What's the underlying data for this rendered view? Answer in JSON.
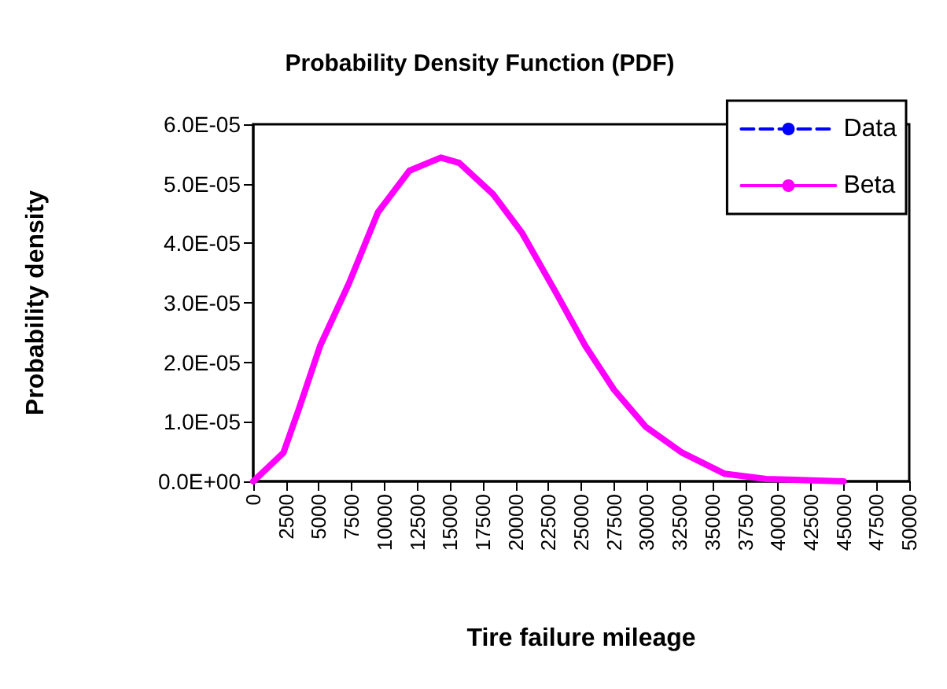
{
  "chart_data": {
    "type": "line",
    "title": "Probability Density Function (PDF)",
    "xlabel": "Tire failure mileage",
    "ylabel": "Probability density",
    "x": [
      0,
      2300,
      3500,
      5100,
      7300,
      9500,
      11900,
      14300,
      15700,
      18300,
      20500,
      23100,
      25300,
      27500,
      29900,
      32700,
      35900,
      39100,
      45000
    ],
    "series": [
      {
        "name": "Data",
        "color": "#0000ff",
        "line_style": "dashed",
        "values": [
          null,
          null,
          null,
          null,
          null,
          null,
          null,
          null,
          null,
          null,
          null,
          null,
          null,
          null,
          null,
          null,
          null,
          null,
          null
        ]
      },
      {
        "name": "Beta",
        "color": "#ff00ff",
        "line_style": "solid",
        "values": [
          0,
          4.8e-06,
          1.23e-05,
          2.28e-05,
          3.33e-05,
          4.52e-05,
          5.22e-05,
          5.44e-05,
          5.35e-05,
          4.82e-05,
          4.17e-05,
          3.16e-05,
          2.28e-05,
          1.54e-05,
          9.2e-06,
          4.8e-06,
          1.3e-06,
          4e-07,
          0
        ]
      }
    ],
    "xlim": [
      0,
      50000
    ],
    "xticks": [
      0,
      2500,
      5000,
      7500,
      10000,
      12500,
      15000,
      17500,
      20000,
      22500,
      25000,
      27500,
      30000,
      32500,
      35000,
      37500,
      40000,
      42500,
      45000,
      47500,
      50000
    ],
    "ylim": [
      0,
      6e-05
    ],
    "yticks": [
      {
        "value": 0,
        "label": "0.0E+00"
      },
      {
        "value": 1e-05,
        "label": "1.0E-05"
      },
      {
        "value": 2e-05,
        "label": "2.0E-05"
      },
      {
        "value": 3e-05,
        "label": "3.0E-05"
      },
      {
        "value": 4e-05,
        "label": "4.0E-05"
      },
      {
        "value": 5e-05,
        "label": "5.0E-05"
      },
      {
        "value": 6e-05,
        "label": "6.0E-05"
      }
    ],
    "grid": false,
    "legend": "top right",
    "marker": "none"
  }
}
